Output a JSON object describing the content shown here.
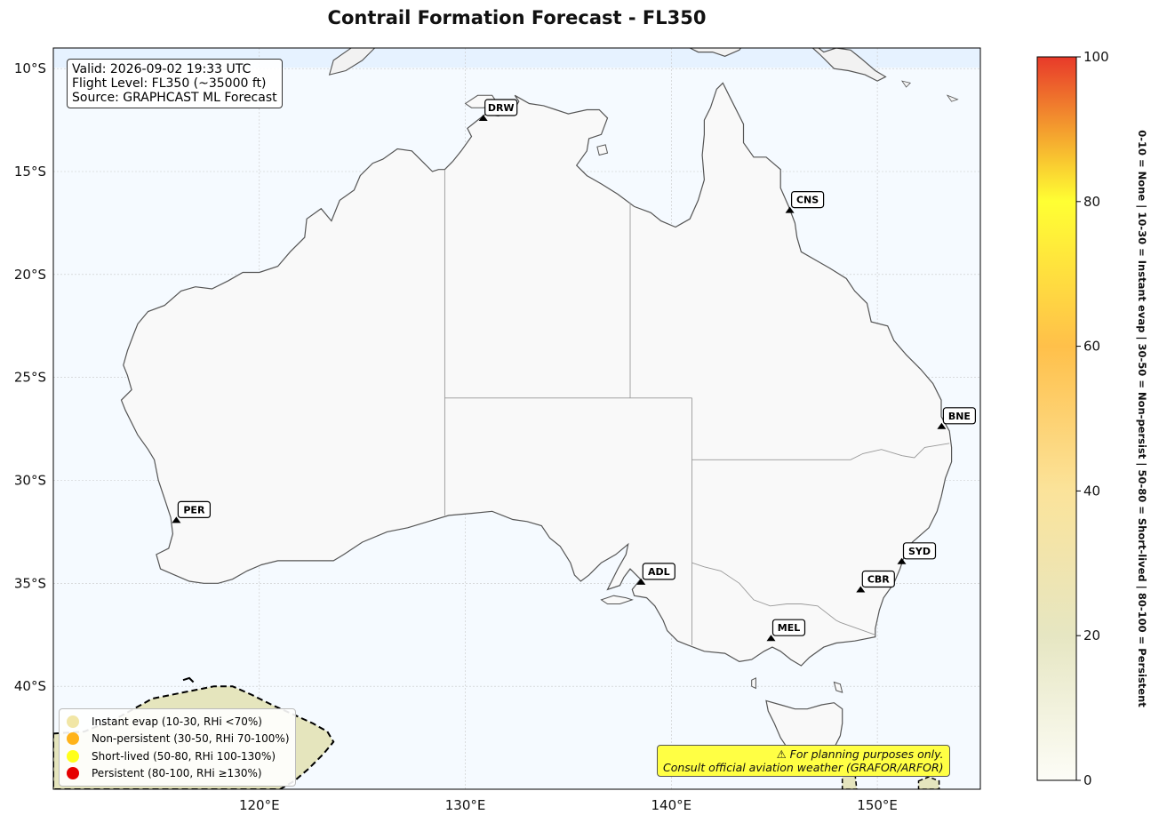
{
  "title": "Contrail Formation Forecast - FL350",
  "info": {
    "valid": "Valid: 2026-09-02 19:33 UTC",
    "flight_level": "Flight Level: FL350 (~35000 ft)",
    "source": "Source: GRAPHCAST ML Forecast"
  },
  "map": {
    "lon_range": [
      110,
      155
    ],
    "lat_range": [
      -45,
      -9
    ],
    "lon_ticks": [
      "120°E",
      "130°E",
      "140°E",
      "150°E"
    ],
    "lat_ticks": [
      "10°S",
      "15°S",
      "20°S",
      "25°S",
      "30°S",
      "35°S",
      "40°S"
    ],
    "gridlines": true,
    "ocean_color": "#f5faff",
    "land_color": "#f9f9f9"
  },
  "airports": [
    {
      "code": "DRW",
      "lon": 130.87,
      "lat": -12.41
    },
    {
      "code": "CNS",
      "lon": 145.75,
      "lat": -16.88
    },
    {
      "code": "BNE",
      "lon": 153.12,
      "lat": -27.38
    },
    {
      "code": "PER",
      "lon": 115.97,
      "lat": -31.94
    },
    {
      "code": "ADL",
      "lon": 138.53,
      "lat": -34.94
    },
    {
      "code": "SYD",
      "lon": 151.18,
      "lat": -33.94
    },
    {
      "code": "CBR",
      "lon": 149.19,
      "lat": -35.31
    },
    {
      "code": "MEL",
      "lon": 144.84,
      "lat": -37.67
    }
  ],
  "legend": [
    {
      "label": "Instant evap (10-30, RHi <70%)",
      "color": "#f1e6a6"
    },
    {
      "label": "Non-persistent (30-50, RHi 70-100%)",
      "color": "#ffb31a"
    },
    {
      "label": "Short-lived (50-80, RHi 100-130%)",
      "color": "#ffff1a"
    },
    {
      "label": "Persistent (80-100, RHi ≥130%)",
      "color": "#e60000"
    }
  ],
  "disclaimer": {
    "line1": "⚠ For planning purposes only.",
    "line2": "Consult official aviation weather (GRAFOR/ARFOR)"
  },
  "colorbar": {
    "min": 0,
    "max": 100,
    "ticks": [
      "0",
      "20",
      "40",
      "60",
      "80",
      "100"
    ],
    "colors": [
      "#fdfdf7",
      "#e6e6c2",
      "#fbe39a",
      "#ffc04a",
      "#ffff33",
      "#e83a2a"
    ],
    "label": "0-10 = None  |  10-30 = Instant evap  |  30-50 = Non-persist  |  50-80 = Short-lived  |  80-100 = Persistent"
  }
}
